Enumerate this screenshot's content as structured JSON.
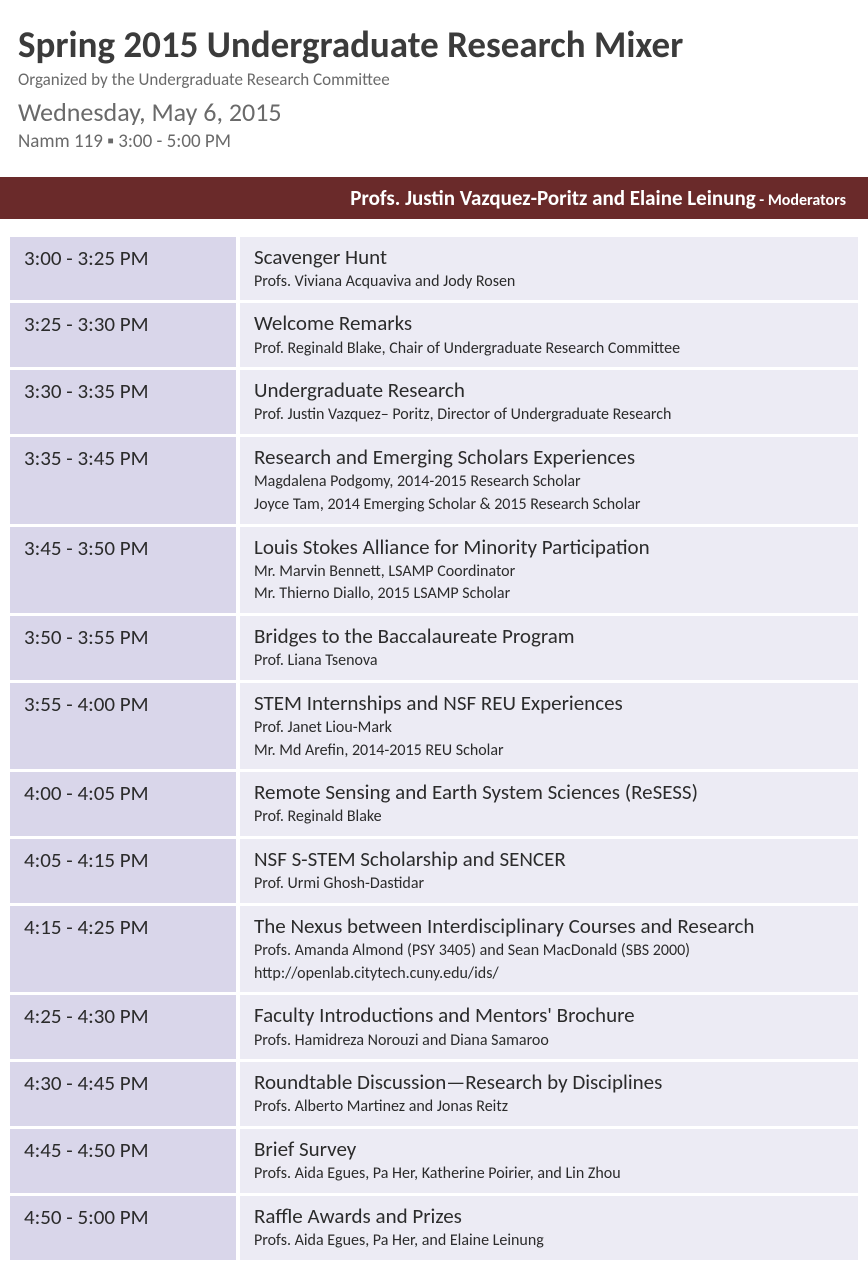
{
  "header": {
    "title": "Spring 2015 Undergraduate Research Mixer",
    "organized_by": "Organized by the Undergraduate Research Committee",
    "date": "Wednesday, May 6, 2015",
    "location": "Namm 119  ▪  3:00 - 5:00 PM"
  },
  "moderators": {
    "names": "Profs. Justin Vazquez-Poritz and Elaine Leinung",
    "separator": "  - ",
    "role": "Moderators"
  },
  "colors": {
    "bar_bg": "#6a2a2a",
    "time_cell_bg": "#d9d6ea",
    "desc_cell_bg": "#ecebf4",
    "title_text": "#3b3b3b",
    "subtext": "#6a6a6a"
  },
  "schedule": [
    {
      "time": "3:00 - 3:25 PM",
      "topic": "Scavenger Hunt",
      "presenters": [
        "Profs. Viviana Acquaviva and  Jody Rosen"
      ]
    },
    {
      "time": "3:25 - 3:30 PM",
      "topic": "Welcome Remarks",
      "presenters": [
        "Prof. Reginald Blake, Chair of Undergraduate Research Committee"
      ]
    },
    {
      "time": "3:30 - 3:35 PM",
      "topic": "Undergraduate Research",
      "presenters": [
        "Prof. Justin Vazquez– Poritz, Director of Undergraduate Research"
      ]
    },
    {
      "time": "3:35 - 3:45 PM",
      "topic": "Research and Emerging Scholars Experiences",
      "presenters": [
        "Magdalena Podgomy, 2014-2015 Research Scholar",
        "Joyce Tam, 2014 Emerging Scholar & 2015 Research Scholar"
      ]
    },
    {
      "time": "3:45 - 3:50 PM",
      "topic": "Louis Stokes Alliance for Minority Participation",
      "presenters": [
        "Mr. Marvin Bennett, LSAMP Coordinator",
        "Mr. Thierno Diallo, 2015 LSAMP Scholar"
      ]
    },
    {
      "time": "3:50 - 3:55 PM",
      "topic": "Bridges to the Baccalaureate Program",
      "presenters": [
        "Prof. Liana Tsenova"
      ]
    },
    {
      "time": "3:55 - 4:00 PM",
      "topic": "STEM Internships and NSF REU Experiences",
      "presenters": [
        "Prof. Janet Liou-Mark",
        "Mr. Md Arefin, 2014-2015 REU Scholar"
      ]
    },
    {
      "time": "4:00 - 4:05 PM",
      "topic": "Remote Sensing and Earth System Sciences (ReSESS)",
      "presenters": [
        "Prof. Reginald Blake"
      ]
    },
    {
      "time": "4:05 - 4:15 PM",
      "topic": "NSF S-STEM Scholarship and SENCER",
      "presenters": [
        "Prof. Urmi Ghosh-Dastidar"
      ]
    },
    {
      "time": "4:15 - 4:25 PM",
      "topic": "The Nexus between Interdisciplinary Courses and Research",
      "presenters": [
        "Profs. Amanda Almond (PSY 3405) and Sean MacDonald (SBS 2000)",
        "http://openlab.citytech.cuny.edu/ids/"
      ]
    },
    {
      "time": "4:25 - 4:30 PM",
      "topic": "Faculty Introductions and Mentors' Brochure",
      "presenters": [
        "Profs. Hamidreza Norouzi and Diana Samaroo"
      ]
    },
    {
      "time": "4:30 - 4:45 PM",
      "topic": "Roundtable Discussion—Research by Disciplines",
      "presenters": [
        "Profs. Alberto Martinez and Jonas Reitz"
      ]
    },
    {
      "time": "4:45 - 4:50 PM",
      "topic": "Brief Survey",
      "presenters": [
        "Profs. Aida Egues, Pa Her, Katherine Poirier, and Lin Zhou"
      ]
    },
    {
      "time": "4:50 - 5:00 PM",
      "topic": "Raffle Awards and Prizes",
      "presenters": [
        "Profs. Aida Egues, Pa Her, and Elaine Leinung"
      ]
    }
  ]
}
